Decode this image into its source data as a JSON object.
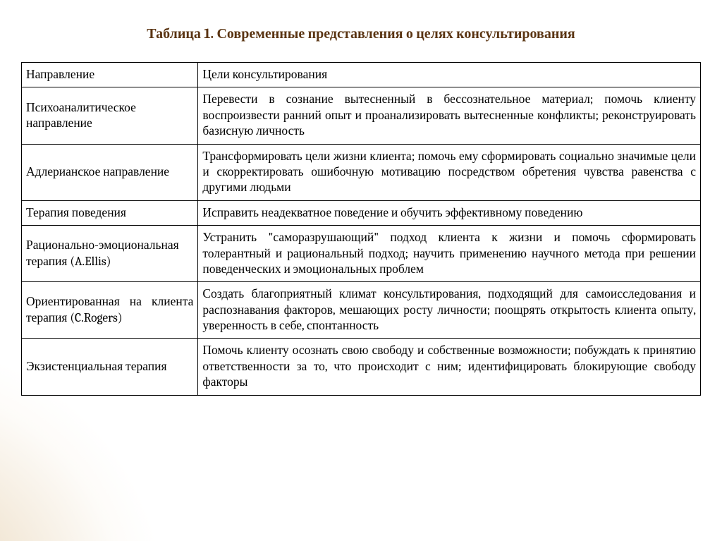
{
  "title": "Таблица 1. Современные представления о целях консультирования",
  "colors": {
    "title": "#5a3412",
    "text": "#000000",
    "border": "#000000",
    "page_bg": "#ffffff",
    "accent_glow_inner": "rgba(210,174,120,0.55)",
    "accent_glow_mid": "rgba(222,194,150,0.35)",
    "accent_glow_outer": "rgba(240,225,200,0.12)"
  },
  "typography": {
    "title_fontsize_pt": 15,
    "title_weight": "bold",
    "body_fontsize_pt": 13,
    "font_family": "Cambria/Georgia serif"
  },
  "table": {
    "type": "table",
    "column_widths_pct": [
      26,
      74
    ],
    "col2_align": "justify",
    "col1_align": "left",
    "columns": [
      "Направление",
      "Цели консультирования"
    ],
    "rows": [
      [
        "Психоаналитическое направление",
        "Перевести в сознание вытесненный в бессознательное материал; помочь клиенту воспроизвести ранний опыт и проанализировать вытесненные конфликты; реконструировать базисную личность"
      ],
      [
        "Адлерианское направление",
        "Трансформировать цели жизни клиента; помочь ему сформировать социально значимые цели и скорректировать ошибочную мотивацию посредством обретения чувства равенства с другими людьми"
      ],
      [
        "Терапия поведения",
        "Исправить неадекватное поведение и обучить эффективному поведению"
      ],
      [
        "Рационально-эмоциональная терапия (A.Ellis)",
        "Устранить \"саморазрушающий\" подход клиента к жизни и помочь сформировать толерантный и рациональный подход; научить применению научного метода при решении поведенческих и эмоциональных проблем"
      ],
      [
        "Ориентированная на клиента терапия (C.Rogers)",
        "Создать благоприятный климат консультирования, подходящий для самоисследования и распознавания факторов, мешающих росту личности; поощрять открытость клиента опыту, уверенность в себе, спонтанность"
      ],
      [
        "Экзистенциальная терапия",
        "Помочь клиенту осознать свою свободу и собственные возможности; побуждать к принятию ответственности за то, что происходит с ним; идентифицировать блокирующие свободу факторы"
      ]
    ],
    "row_col1_justify": [
      false,
      false,
      false,
      true,
      true,
      false
    ]
  }
}
